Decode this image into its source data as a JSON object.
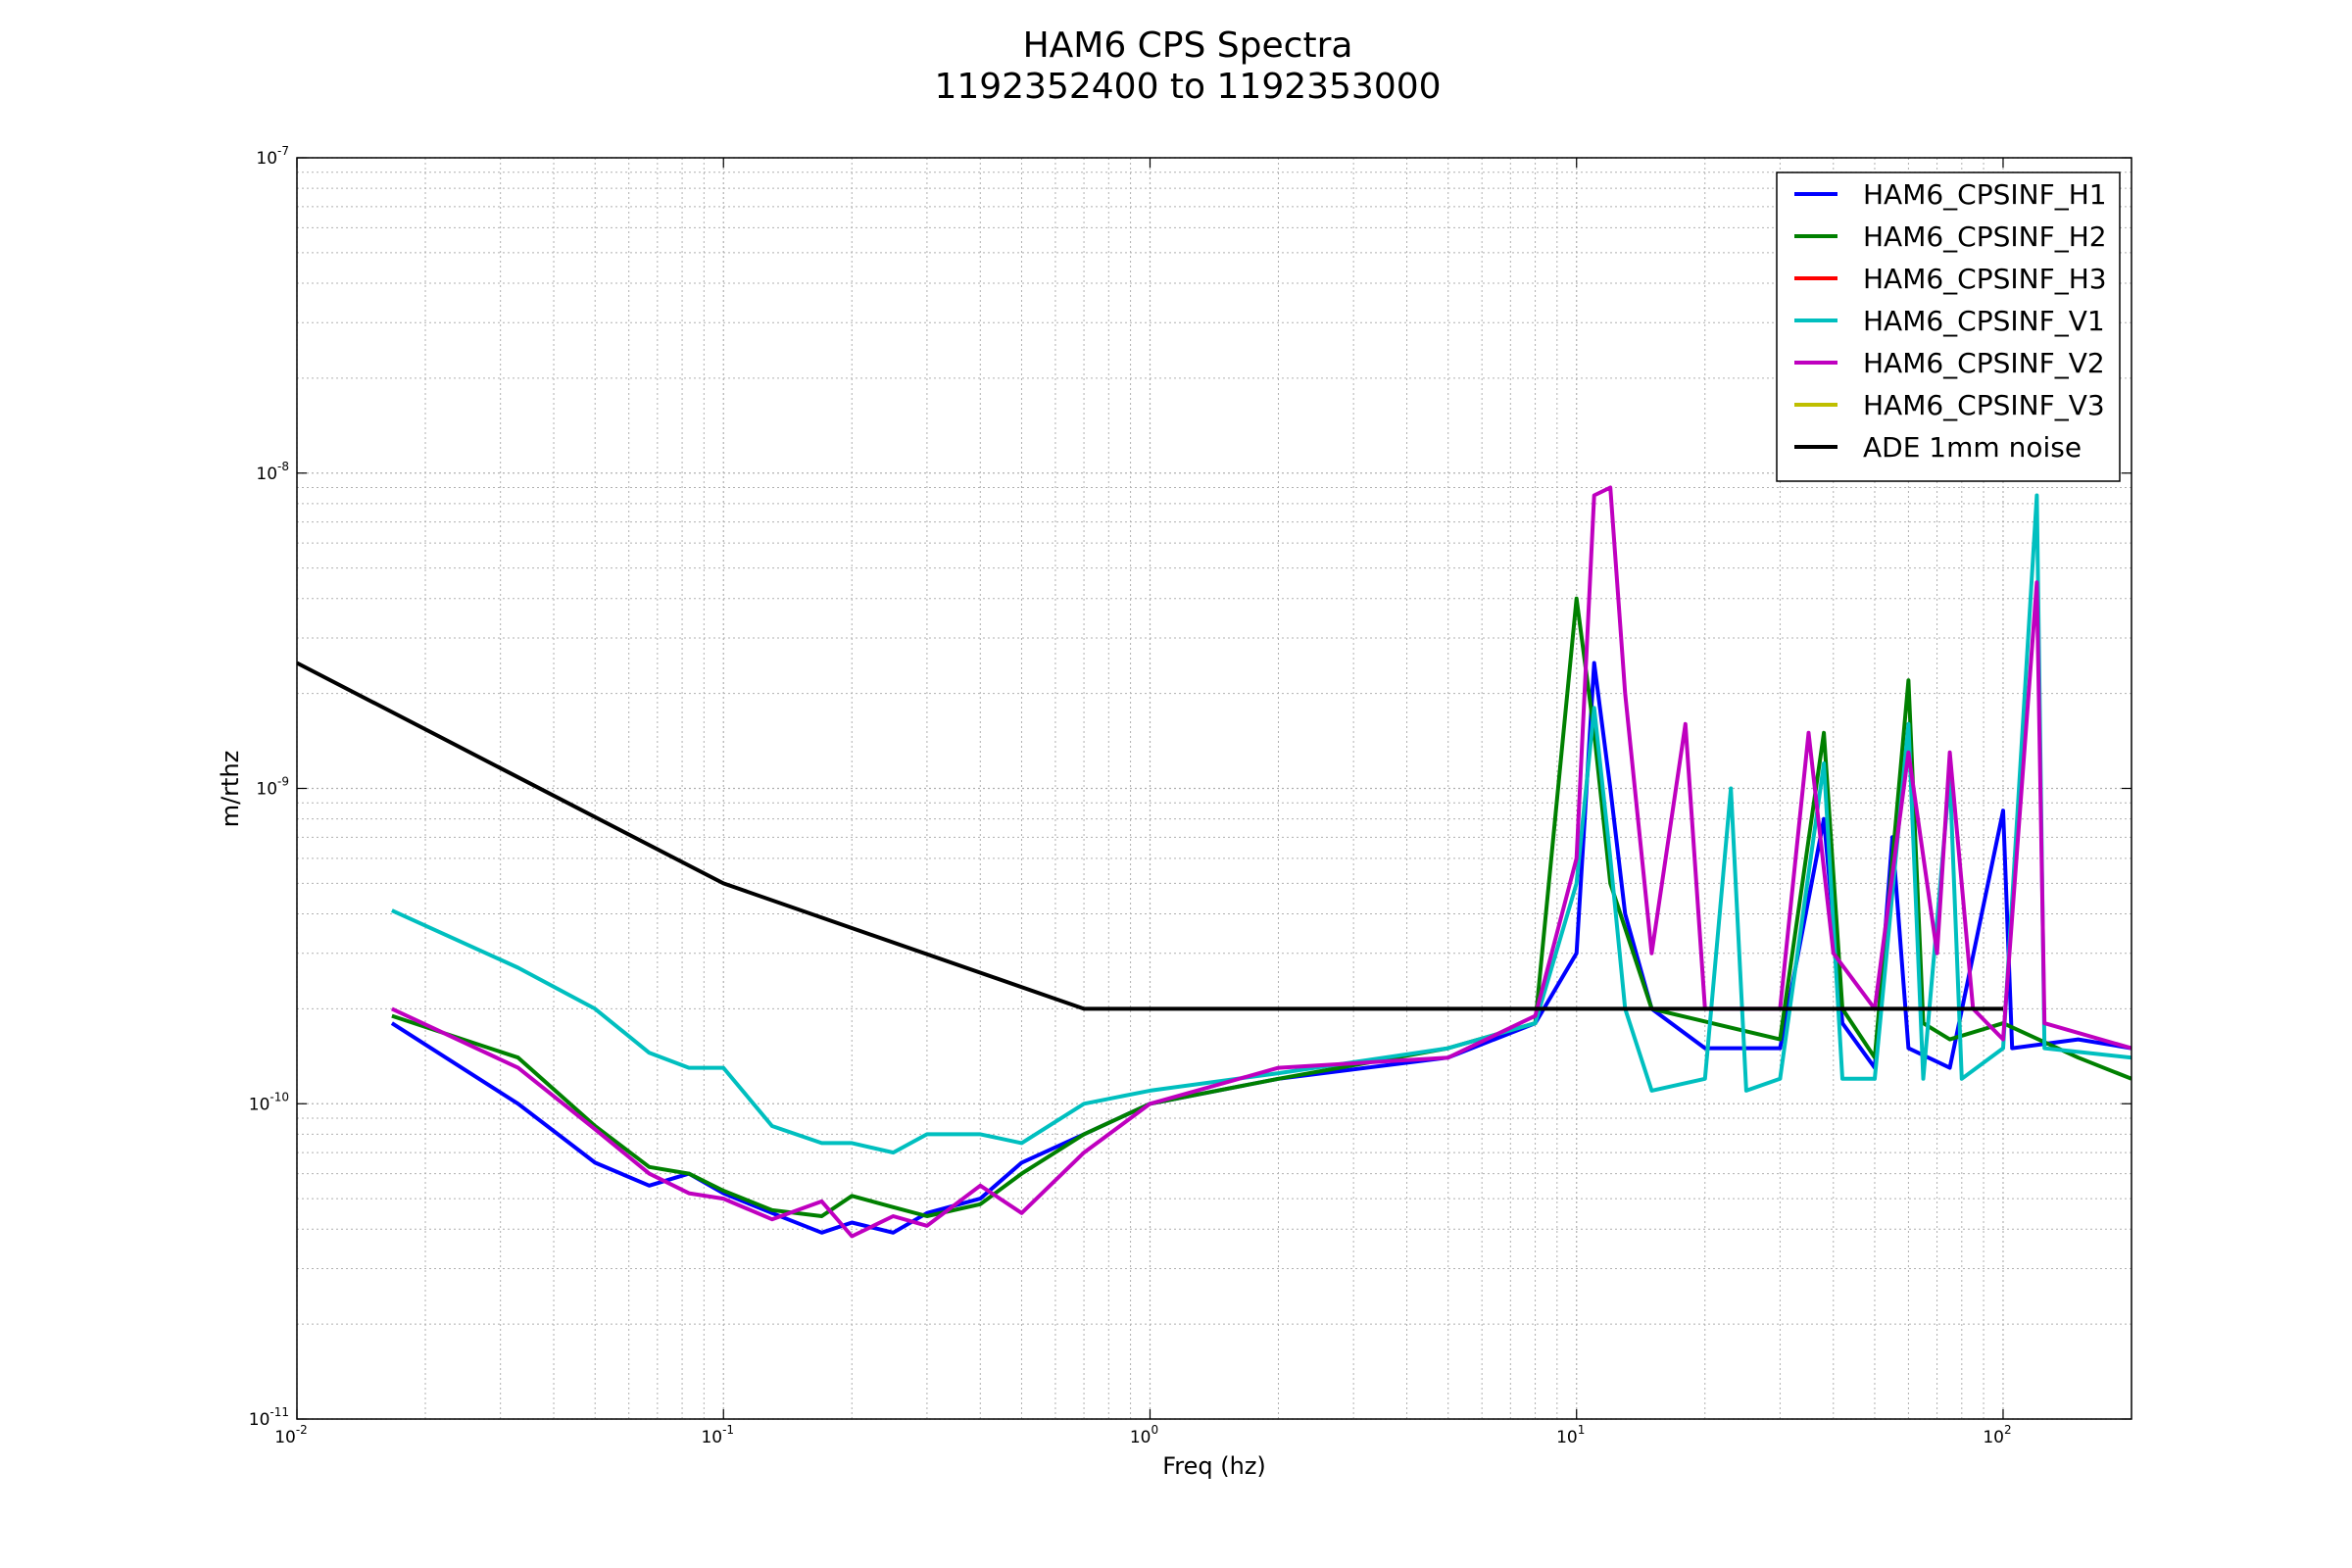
{
  "chart_data": {
    "type": "line",
    "title": "HAM6 CPS Spectra",
    "subtitle": "1192352400 to 1192353000",
    "xlabel": "Freq (hz)",
    "ylabel": "m/rthz",
    "xscale": "log",
    "yscale": "log",
    "xlim": [
      0.01,
      200
    ],
    "ylim": [
      1e-11,
      1e-07
    ],
    "x_ticks": [
      {
        "base": "10",
        "exp": "-2",
        "value": 0.01
      },
      {
        "base": "10",
        "exp": "-1",
        "value": 0.1
      },
      {
        "base": "10",
        "exp": "0",
        "value": 1
      },
      {
        "base": "10",
        "exp": "1",
        "value": 10
      },
      {
        "base": "10",
        "exp": "2",
        "value": 100
      }
    ],
    "y_ticks": [
      {
        "base": "10",
        "exp": "-11",
        "value": 1e-11
      },
      {
        "base": "10",
        "exp": "-10",
        "value": 1e-10
      },
      {
        "base": "10",
        "exp": "-9",
        "value": 1e-09
      },
      {
        "base": "10",
        "exp": "-8",
        "value": 1e-08
      },
      {
        "base": "10",
        "exp": "-7",
        "value": 1e-07
      }
    ],
    "grid": true,
    "legend_position": "top-right",
    "series": [
      {
        "name": "HAM6_CPSINF_H1",
        "color": "#0000ff",
        "points": [
          [
            0.0167,
            1.8e-10
          ],
          [
            0.033,
            1e-10
          ],
          [
            0.05,
            6.5e-11
          ],
          [
            0.067,
            5.5e-11
          ],
          [
            0.083,
            6e-11
          ],
          [
            0.1,
            5.2e-11
          ],
          [
            0.13,
            4.5e-11
          ],
          [
            0.17,
            3.9e-11
          ],
          [
            0.2,
            4.2e-11
          ],
          [
            0.25,
            3.9e-11
          ],
          [
            0.3,
            4.5e-11
          ],
          [
            0.4,
            5e-11
          ],
          [
            0.5,
            6.5e-11
          ],
          [
            0.7,
            8e-11
          ],
          [
            1,
            1e-10
          ],
          [
            2,
            1.2e-10
          ],
          [
            5,
            1.4e-10
          ],
          [
            8,
            1.8e-10
          ],
          [
            10,
            3e-10
          ],
          [
            11,
            2.5e-09
          ],
          [
            12,
            1e-09
          ],
          [
            13,
            4e-10
          ],
          [
            15,
            2e-10
          ],
          [
            20,
            1.5e-10
          ],
          [
            30,
            1.5e-10
          ],
          [
            38,
            8e-10
          ],
          [
            42,
            1.8e-10
          ],
          [
            50,
            1.3e-10
          ],
          [
            55,
            7e-10
          ],
          [
            60,
            1.5e-10
          ],
          [
            75,
            1.3e-10
          ],
          [
            100,
            8.5e-10
          ],
          [
            105,
            1.5e-10
          ],
          [
            150,
            1.6e-10
          ],
          [
            200,
            1.5e-10
          ]
        ]
      },
      {
        "name": "HAM6_CPSINF_H2",
        "color": "#008000",
        "points": [
          [
            0.0167,
            1.9e-10
          ],
          [
            0.033,
            1.4e-10
          ],
          [
            0.05,
            8.5e-11
          ],
          [
            0.067,
            6.3e-11
          ],
          [
            0.083,
            6e-11
          ],
          [
            0.1,
            5.3e-11
          ],
          [
            0.13,
            4.6e-11
          ],
          [
            0.17,
            4.4e-11
          ],
          [
            0.2,
            5.1e-11
          ],
          [
            0.25,
            4.7e-11
          ],
          [
            0.3,
            4.4e-11
          ],
          [
            0.4,
            4.8e-11
          ],
          [
            0.5,
            6e-11
          ],
          [
            0.7,
            8e-11
          ],
          [
            1,
            1e-10
          ],
          [
            2,
            1.2e-10
          ],
          [
            5,
            1.5e-10
          ],
          [
            8,
            1.8e-10
          ],
          [
            10,
            4e-09
          ],
          [
            11,
            1.5e-09
          ],
          [
            12,
            5e-10
          ],
          [
            15,
            2e-10
          ],
          [
            30,
            1.6e-10
          ],
          [
            38,
            1.5e-09
          ],
          [
            42,
            2e-10
          ],
          [
            50,
            1.4e-10
          ],
          [
            60,
            2.2e-09
          ],
          [
            65,
            1.8e-10
          ],
          [
            75,
            1.6e-10
          ],
          [
            100,
            1.8e-10
          ],
          [
            150,
            1.4e-10
          ],
          [
            200,
            1.2e-10
          ]
        ]
      },
      {
        "name": "HAM6_CPSINF_H3",
        "color": "#ff0000",
        "points": []
      },
      {
        "name": "HAM6_CPSINF_V1",
        "color": "#00bfbf",
        "points": [
          [
            0.0167,
            4.1e-10
          ],
          [
            0.033,
            2.7e-10
          ],
          [
            0.05,
            2e-10
          ],
          [
            0.067,
            1.45e-10
          ],
          [
            0.083,
            1.3e-10
          ],
          [
            0.1,
            1.3e-10
          ],
          [
            0.13,
            8.5e-11
          ],
          [
            0.17,
            7.5e-11
          ],
          [
            0.2,
            7.5e-11
          ],
          [
            0.25,
            7e-11
          ],
          [
            0.3,
            8e-11
          ],
          [
            0.4,
            8e-11
          ],
          [
            0.5,
            7.5e-11
          ],
          [
            0.7,
            1e-10
          ],
          [
            1,
            1.1e-10
          ],
          [
            2,
            1.25e-10
          ],
          [
            5,
            1.5e-10
          ],
          [
            8,
            1.8e-10
          ],
          [
            10,
            5e-10
          ],
          [
            11,
            1.8e-09
          ],
          [
            12,
            6e-10
          ],
          [
            13,
            2e-10
          ],
          [
            15,
            1.1e-10
          ],
          [
            20,
            1.2e-10
          ],
          [
            23,
            1e-09
          ],
          [
            25,
            1.1e-10
          ],
          [
            30,
            1.2e-10
          ],
          [
            38,
            1.2e-09
          ],
          [
            42,
            1.2e-10
          ],
          [
            50,
            1.2e-10
          ],
          [
            60,
            1.6e-09
          ],
          [
            65,
            1.2e-10
          ],
          [
            75,
            1.1e-09
          ],
          [
            80,
            1.2e-10
          ],
          [
            100,
            1.5e-10
          ],
          [
            120,
            8.5e-09
          ],
          [
            125,
            1.5e-10
          ],
          [
            200,
            1.4e-10
          ]
        ]
      },
      {
        "name": "HAM6_CPSINF_V2",
        "color": "#bf00bf",
        "points": [
          [
            0.0167,
            2e-10
          ],
          [
            0.033,
            1.3e-10
          ],
          [
            0.05,
            8.3e-11
          ],
          [
            0.067,
            6e-11
          ],
          [
            0.083,
            5.2e-11
          ],
          [
            0.1,
            5e-11
          ],
          [
            0.13,
            4.3e-11
          ],
          [
            0.17,
            4.9e-11
          ],
          [
            0.2,
            3.8e-11
          ],
          [
            0.25,
            4.4e-11
          ],
          [
            0.3,
            4.1e-11
          ],
          [
            0.4,
            5.5e-11
          ],
          [
            0.5,
            4.5e-11
          ],
          [
            0.7,
            7e-11
          ],
          [
            1,
            1e-10
          ],
          [
            2,
            1.3e-10
          ],
          [
            5,
            1.4e-10
          ],
          [
            8,
            1.9e-10
          ],
          [
            10,
            6e-10
          ],
          [
            11,
            8.5e-09
          ],
          [
            12,
            9e-09
          ],
          [
            13,
            2e-09
          ],
          [
            15,
            3e-10
          ],
          [
            18,
            1.6e-09
          ],
          [
            20,
            2e-10
          ],
          [
            30,
            2e-10
          ],
          [
            35,
            1.5e-09
          ],
          [
            40,
            3e-10
          ],
          [
            50,
            2e-10
          ],
          [
            60,
            1.3e-09
          ],
          [
            70,
            3e-10
          ],
          [
            75,
            1.3e-09
          ],
          [
            85,
            2e-10
          ],
          [
            100,
            1.6e-10
          ],
          [
            120,
            4.5e-09
          ],
          [
            125,
            1.8e-10
          ],
          [
            200,
            1.5e-10
          ]
        ]
      },
      {
        "name": "HAM6_CPSINF_V3",
        "color": "#bfbf00",
        "points": []
      },
      {
        "name": "ADE 1mm noise",
        "color": "#000000",
        "points": [
          [
            0.01,
            2.5e-09
          ],
          [
            0.1,
            5e-10
          ],
          [
            0.7,
            2e-10
          ],
          [
            100,
            2e-10
          ]
        ]
      }
    ]
  }
}
